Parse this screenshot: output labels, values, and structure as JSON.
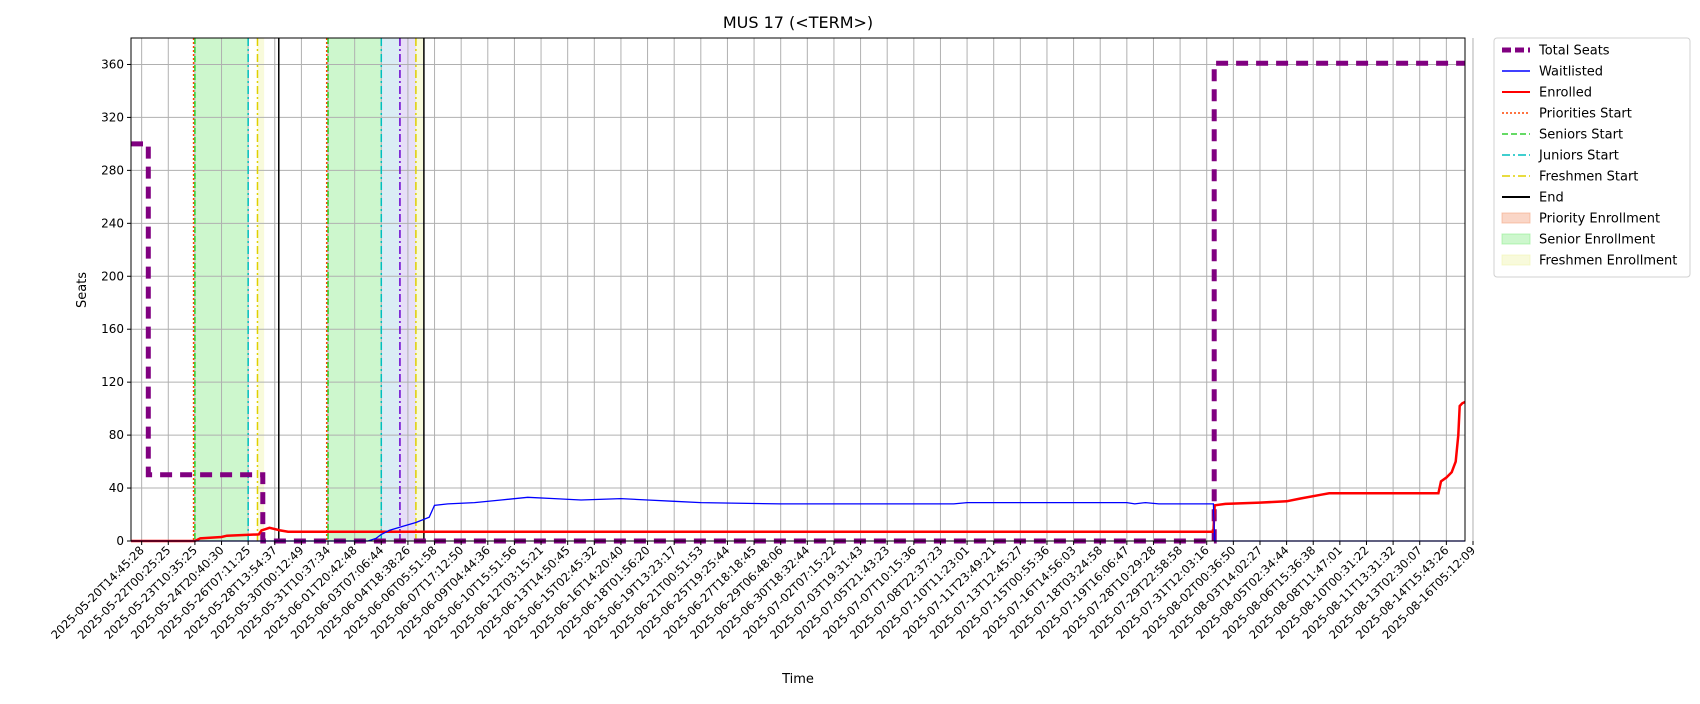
{
  "chart_data": {
    "type": "line",
    "title": "MUS 17 (<TERM>)",
    "xlabel": "Time",
    "ylabel": "Seats",
    "ylim": [
      0,
      380
    ],
    "yticks": [
      0,
      40,
      80,
      120,
      160,
      200,
      240,
      280,
      320,
      360
    ],
    "grid": true,
    "legend_position": "outside-right",
    "x_ticks": [
      "2025-05-20T14:45:28",
      "2025-05-22T00:25:25",
      "2025-05-23T10:35:25",
      "2025-05-24T20:40:30",
      "2025-05-26T07:11:25",
      "2025-05-28T13:54:37",
      "2025-05-30T00:12:49",
      "2025-05-31T10:37:34",
      "2025-06-01T20:42:48",
      "2025-06-03T07:06:44",
      "2025-06-04T18:38:26",
      "2025-06-06T05:51:58",
      "2025-06-07T17:12:50",
      "2025-06-09T04:44:36",
      "2025-06-10T15:51:56",
      "2025-06-12T03:15:21",
      "2025-06-13T14:50:45",
      "2025-06-15T02:45:32",
      "2025-06-16T14:20:40",
      "2025-06-18T01:56:20",
      "2025-06-19T13:23:17",
      "2025-06-21T00:51:53",
      "2025-06-25T19:25:44",
      "2025-06-27T18:18:45",
      "2025-06-29T06:48:06",
      "2025-06-30T18:32:44",
      "2025-07-02T07:15:22",
      "2025-07-03T19:31:43",
      "2025-07-05T21:43:23",
      "2025-07-07T10:15:36",
      "2025-07-08T22:37:23",
      "2025-07-10T11:23:01",
      "2025-07-11T23:49:21",
      "2025-07-13T12:45:27",
      "2025-07-15T00:55:36",
      "2025-07-16T14:56:03",
      "2025-07-18T03:24:58",
      "2025-07-19T16:06:47",
      "2025-07-28T10:29:28",
      "2025-07-29T22:58:58",
      "2025-07-31T12:03:16",
      "2025-08-02T00:36:50",
      "2025-08-03T14:02:27",
      "2025-08-05T02:34:44",
      "2025-08-06T15:36:38",
      "2025-08-08T11:47:01",
      "2025-08-10T00:31:22",
      "2025-08-11T13:31:32",
      "2025-08-13T02:30:07",
      "2025-08-14T15:43:26",
      "2025-08-16T05:12:09"
    ],
    "legend": [
      {
        "label": "Total Seats",
        "color": "#800080",
        "style": "dashed-thick"
      },
      {
        "label": "Waitlisted",
        "color": "#0000ff",
        "style": "solid-thin"
      },
      {
        "label": "Enrolled",
        "color": "#ff0000",
        "style": "solid"
      },
      {
        "label": "Priorities Start",
        "color": "#ff4500",
        "style": "dotted"
      },
      {
        "label": "Seniors Start",
        "color": "#32cd32",
        "style": "dashed"
      },
      {
        "label": "Juniors Start",
        "color": "#00bfbf",
        "style": "dashdot"
      },
      {
        "label": "Freshmen Start",
        "color": "#e0d000",
        "style": "dashdot"
      },
      {
        "label": "End",
        "color": "#000000",
        "style": "solid"
      },
      {
        "label": "Priority Enrollment",
        "color": "#f4a582",
        "style": "patch"
      },
      {
        "label": "Senior Enrollment",
        "color": "#90ee90",
        "style": "patch"
      },
      {
        "label": "Freshmen Enrollment",
        "color": "#f0f5b0",
        "style": "patch"
      }
    ],
    "shaded_regions": [
      {
        "series": "Senior Enrollment",
        "from": 2.0,
        "to": 4.0,
        "color": "#90ee90"
      },
      {
        "series": "Freshmen Enrollment",
        "from": 4.35,
        "to": 4.6,
        "color": "#f0f5b0"
      },
      {
        "series": "Senior Enrollment",
        "from": 7.0,
        "to": 9.0,
        "color": "#90ee90"
      },
      {
        "series": "Juniors",
        "from": 9.0,
        "to": 9.7,
        "color": "#add8e6"
      },
      {
        "series": "Priority+Junior",
        "from": 9.7,
        "to": 10.3,
        "color": "#cab8f0"
      },
      {
        "series": "Freshmen Enrollment",
        "from": 10.3,
        "to": 10.6,
        "color": "#f0f5b0"
      }
    ],
    "vertical_lines": [
      {
        "series": "Priorities Start",
        "x": 1.95,
        "color": "#ff4500",
        "dash": "2,2"
      },
      {
        "series": "Seniors Start",
        "x": 2.0,
        "color": "#32cd32",
        "dash": "6,3"
      },
      {
        "series": "Juniors Start",
        "x": 4.0,
        "color": "#00bfbf",
        "dash": "8,3,2,3"
      },
      {
        "series": "Freshmen Start",
        "x": 4.35,
        "color": "#e0d000",
        "dash": "8,3,2,3"
      },
      {
        "series": "End",
        "x": 5.15,
        "color": "#000000",
        "dash": ""
      },
      {
        "series": "Priorities Start",
        "x": 6.95,
        "color": "#ff4500",
        "dash": "2,2"
      },
      {
        "series": "Seniors Start",
        "x": 7.0,
        "color": "#32cd32",
        "dash": "6,3"
      },
      {
        "series": "Juniors Start",
        "x": 9.0,
        "color": "#00bfbf",
        "dash": "8,3,2,3"
      },
      {
        "series": "Priorities Start",
        "x": 9.7,
        "color": "#6a00d0",
        "dash": "8,3,2,3"
      },
      {
        "series": "Freshmen Start",
        "x": 10.3,
        "color": "#e0d000",
        "dash": "8,3,2,3"
      },
      {
        "series": "End",
        "x": 10.6,
        "color": "#000000",
        "dash": ""
      }
    ],
    "series": [
      {
        "name": "Total Seats",
        "color": "#800080",
        "points": [
          [
            -0.4,
            300
          ],
          [
            0.25,
            300
          ],
          [
            0.25,
            50
          ],
          [
            4.55,
            50
          ],
          [
            4.55,
            0
          ],
          [
            40.28,
            0
          ],
          [
            40.28,
            361
          ],
          [
            49.7,
            361
          ]
        ]
      },
      {
        "name": "Waitlisted",
        "color": "#0000ff",
        "points": [
          [
            -0.4,
            0
          ],
          [
            8.5,
            0
          ],
          [
            8.8,
            2
          ],
          [
            9.0,
            5
          ],
          [
            9.3,
            8
          ],
          [
            9.8,
            11
          ],
          [
            10.3,
            14
          ],
          [
            10.8,
            18
          ],
          [
            11.0,
            27
          ],
          [
            11.5,
            28
          ],
          [
            12.5,
            29
          ],
          [
            13.5,
            31
          ],
          [
            14.5,
            33
          ],
          [
            15.5,
            32
          ],
          [
            16.5,
            31
          ],
          [
            18.0,
            32
          ],
          [
            19.0,
            31
          ],
          [
            20.0,
            30
          ],
          [
            21.0,
            29
          ],
          [
            24.0,
            28
          ],
          [
            28.0,
            28
          ],
          [
            30.5,
            28
          ],
          [
            31.0,
            29
          ],
          [
            34.0,
            29
          ],
          [
            37.0,
            29
          ],
          [
            37.3,
            28
          ],
          [
            37.7,
            29
          ],
          [
            38.2,
            28
          ],
          [
            40.25,
            28
          ],
          [
            40.3,
            0
          ],
          [
            49.7,
            0
          ]
        ]
      },
      {
        "name": "Enrolled",
        "color": "#ff0000",
        "points": [
          [
            -0.4,
            0
          ],
          [
            2.0,
            0
          ],
          [
            2.2,
            2
          ],
          [
            3.0,
            3
          ],
          [
            3.2,
            4
          ],
          [
            4.4,
            5
          ],
          [
            4.5,
            8
          ],
          [
            4.8,
            10
          ],
          [
            5.2,
            8
          ],
          [
            5.5,
            7
          ],
          [
            40.25,
            7
          ],
          [
            40.3,
            27
          ],
          [
            40.7,
            28
          ],
          [
            42.0,
            29
          ],
          [
            43.0,
            30
          ],
          [
            43.5,
            32
          ],
          [
            44.3,
            35
          ],
          [
            44.6,
            36
          ],
          [
            47.0,
            36
          ],
          [
            48.0,
            36
          ],
          [
            48.7,
            36
          ],
          [
            48.8,
            45
          ],
          [
            49.0,
            48
          ],
          [
            49.2,
            52
          ],
          [
            49.35,
            60
          ],
          [
            49.45,
            80
          ],
          [
            49.5,
            102
          ],
          [
            49.6,
            104
          ],
          [
            49.7,
            105
          ]
        ]
      }
    ]
  }
}
